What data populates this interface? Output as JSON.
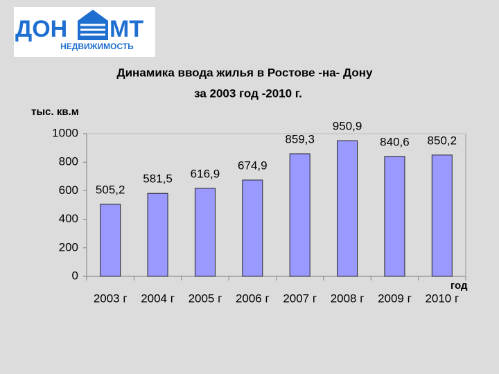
{
  "logo": {
    "left": "ДОН",
    "right": "МТ",
    "tagline": "НЕДВИЖИМОСТЬ"
  },
  "chart_data": {
    "type": "bar",
    "title": "Динамика ввода жилья в Ростове -на- Дону",
    "subtitle": "за 2003 год -2010 г.",
    "y_label": "тыс. кв.м",
    "x_label": "год",
    "categories": [
      "2003 г",
      "2004 г",
      "2005 г",
      "2006 г",
      "2007 г",
      "2008 г",
      "2009 г",
      "2010 г"
    ],
    "values": [
      505.2,
      581.5,
      616.9,
      674.9,
      859.3,
      950.9,
      840.6,
      850.2
    ],
    "value_labels": [
      "505,2",
      "581,5",
      "616,9",
      "674,9",
      "859,3",
      "950,9",
      "840,6",
      "850,2"
    ],
    "color": "#9999ff",
    "ylim": [
      0,
      1000
    ],
    "yticks": [
      0,
      200,
      400,
      600,
      800,
      1000
    ],
    "grid": false
  }
}
